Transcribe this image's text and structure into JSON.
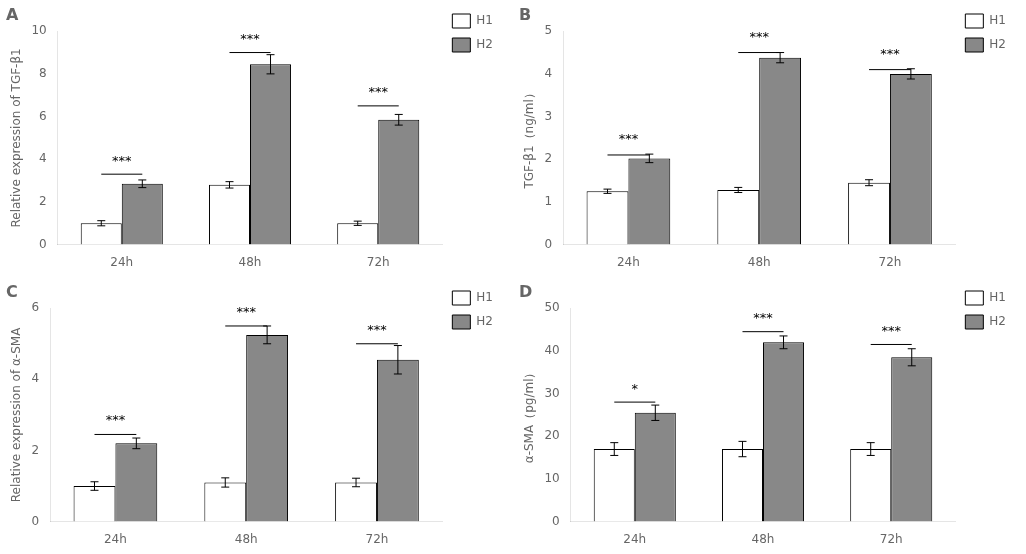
{
  "chart_data": [
    {
      "type": "bar",
      "title": "A",
      "y_label": "Relative expression of TGF-β1",
      "categories": [
        "24h",
        "48h",
        "72h"
      ],
      "series": [
        {
          "name": "H1",
          "color": "#ffffff",
          "values": [
            1.0,
            2.8,
            1.0
          ],
          "errors": [
            0.12,
            0.15,
            0.1
          ]
        },
        {
          "name": "H2",
          "color": "#888888",
          "values": [
            2.85,
            8.45,
            5.85
          ],
          "errors": [
            0.18,
            0.45,
            0.25
          ]
        }
      ],
      "annotations": [
        {
          "text": "***",
          "category": "24h",
          "y": 3.6,
          "line_y": 3.3
        },
        {
          "text": "***",
          "category": "48h",
          "y": 9.3,
          "line_y": 9.0
        },
        {
          "text": "***",
          "category": "72h",
          "y": 6.8,
          "line_y": 6.5
        }
      ],
      "ylim": [
        0,
        10
      ],
      "yticks": [
        0,
        2,
        4,
        6,
        8,
        10
      ],
      "grid": false,
      "legend": "right"
    },
    {
      "type": "bar",
      "title": "B",
      "y_label": "TGF-β1（ng/ml）",
      "categories": [
        "24h",
        "48h",
        "72h"
      ],
      "series": [
        {
          "name": "H1",
          "color": "#ffffff",
          "values": [
            1.25,
            1.28,
            1.45
          ],
          "errors": [
            0.05,
            0.06,
            0.07
          ]
        },
        {
          "name": "H2",
          "color": "#888888",
          "values": [
            2.02,
            4.38,
            4.0
          ],
          "errors": [
            0.1,
            0.12,
            0.12
          ]
        }
      ],
      "annotations": [
        {
          "text": "***",
          "category": "24h",
          "y": 2.3,
          "line_y": 2.1
        },
        {
          "text": "***",
          "category": "48h",
          "y": 4.7,
          "line_y": 4.5
        },
        {
          "text": "***",
          "category": "72h",
          "y": 4.3,
          "line_y": 4.1
        }
      ],
      "ylim": [
        0,
        5
      ],
      "yticks": [
        0,
        1,
        2,
        3,
        4,
        5
      ],
      "grid": false,
      "legend": "right"
    },
    {
      "type": "bar",
      "title": "C",
      "y_label": "Relative expression of α-SMA",
      "categories": [
        "24h",
        "48h",
        "72h"
      ],
      "series": [
        {
          "name": "H1",
          "color": "#ffffff",
          "values": [
            1.0,
            1.1,
            1.1
          ],
          "errors": [
            0.12,
            0.13,
            0.12
          ]
        },
        {
          "name": "H2",
          "color": "#888888",
          "values": [
            2.2,
            5.25,
            4.55
          ],
          "errors": [
            0.15,
            0.25,
            0.4
          ]
        }
      ],
      "annotations": [
        {
          "text": "***",
          "category": "24h",
          "y": 2.65,
          "line_y": 2.45
        },
        {
          "text": "***",
          "category": "48h",
          "y": 5.7,
          "line_y": 5.5
        },
        {
          "text": "***",
          "category": "72h",
          "y": 5.2,
          "line_y": 5.0
        }
      ],
      "ylim": [
        0,
        6
      ],
      "yticks": [
        0,
        2,
        4,
        6
      ],
      "grid": false,
      "legend": "right"
    },
    {
      "type": "bar",
      "title": "D",
      "y_label": "α-SMA（pg/ml）",
      "categories": [
        "24h",
        "48h",
        "72h"
      ],
      "series": [
        {
          "name": "H1",
          "color": "#ffffff",
          "values": [
            17.0,
            17.0,
            17.0
          ],
          "errors": [
            1.5,
            1.8,
            1.5
          ]
        },
        {
          "name": "H2",
          "color": "#888888",
          "values": [
            25.5,
            42.0,
            38.5
          ],
          "errors": [
            1.8,
            1.5,
            2.0
          ]
        }
      ],
      "annotations": [
        {
          "text": "*",
          "category": "24h",
          "y": 29.5,
          "line_y": 28.0
        },
        {
          "text": "***",
          "category": "48h",
          "y": 46.0,
          "line_y": 44.5
        },
        {
          "text": "***",
          "category": "72h",
          "y": 43.0,
          "line_y": 41.5
        }
      ],
      "ylim": [
        0,
        50
      ],
      "yticks": [
        0,
        10,
        20,
        30,
        40,
        50
      ],
      "grid": false,
      "legend": "right"
    }
  ]
}
